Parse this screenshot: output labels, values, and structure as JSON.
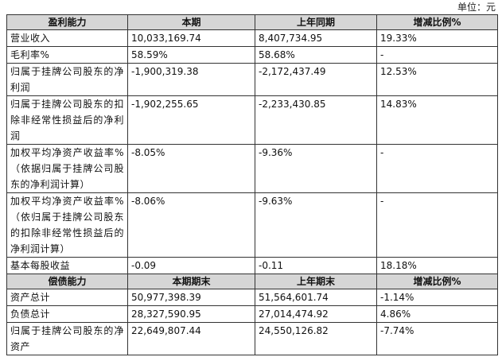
{
  "unit": "单位：元",
  "sections": [
    {
      "header": [
        "盈利能力",
        "本期",
        "上年同期",
        "增减比例%"
      ],
      "rows": [
        [
          "营业收入",
          "10,033,169.74",
          "8,407,734.95",
          "19.33%"
        ],
        [
          "毛利率%",
          "58.59%",
          "58.68%",
          "-"
        ],
        [
          "归属于挂牌公司股东的净利润",
          "-1,900,319.38",
          "-2,172,437.49",
          "12.53%"
        ],
        [
          "归属于挂牌公司股东的扣除非经常性损益后的净利润",
          "-1,902,255.65",
          "-2,233,430.85",
          "14.83%"
        ],
        [
          "加权平均净资产收益率%（依据归属于挂牌公司股东的净利润计算）",
          "-8.05%",
          "-9.36%",
          "-"
        ],
        [
          "加权平均净资产收益率%（依归属于挂牌公司股东的扣除非经常性损益后的净利润计算）",
          "-8.06%",
          "-9.63%",
          "-"
        ],
        [
          "基本每股收益",
          "-0.09",
          "-0.11",
          "18.18%"
        ]
      ]
    },
    {
      "header": [
        "偿债能力",
        "本期期末",
        "上年期末",
        "增减比例%"
      ],
      "rows": [
        [
          "资产总计",
          "50,977,398.39",
          "51,564,601.74",
          "-1.14%"
        ],
        [
          "负债总计",
          "28,327,590.95",
          "27,014,474.92",
          "4.86%"
        ],
        [
          "归属于挂牌公司股东的净资产",
          "22,649,807.44",
          "24,550,126.82",
          "-7.74%"
        ]
      ]
    }
  ]
}
